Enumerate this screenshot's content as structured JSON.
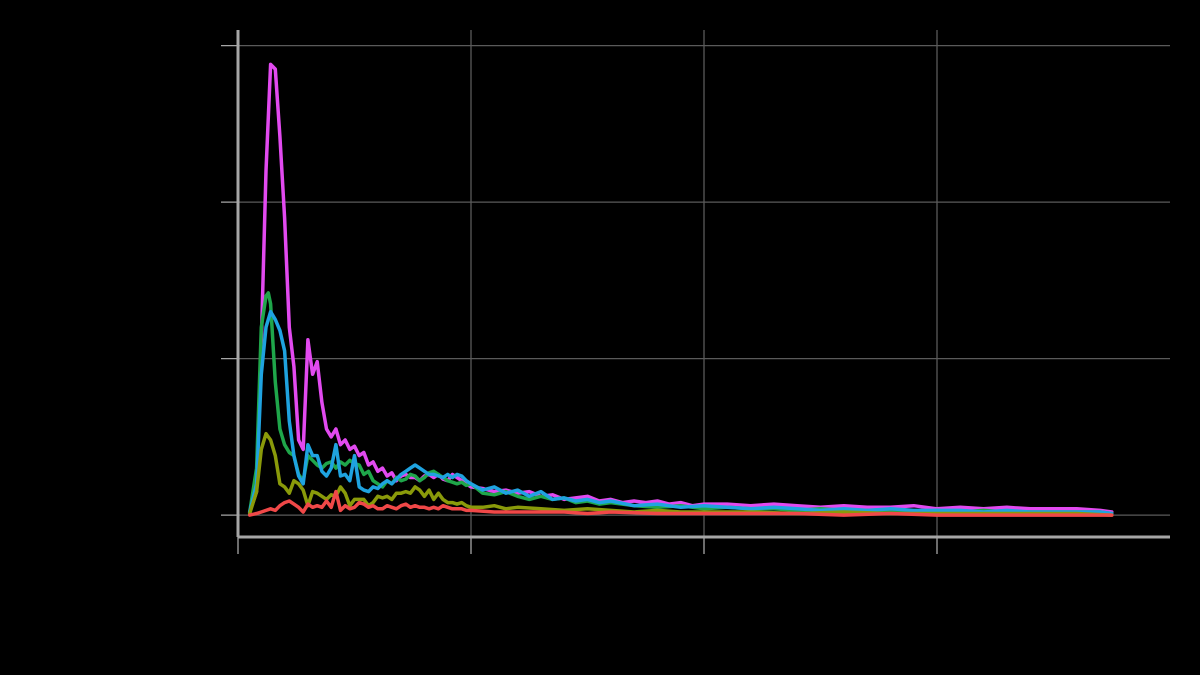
{
  "chart_data": {
    "type": "line",
    "title": "",
    "xlabel": "",
    "ylabel": "",
    "xlim": [
      0,
      4.0
    ],
    "ylim": [
      -0.14,
      3.1
    ],
    "x_ticks": [
      0,
      1,
      2,
      3
    ],
    "y_ticks": [
      0,
      1,
      2,
      3
    ],
    "x_tick_labels": [
      "",
      "",
      "",
      ""
    ],
    "y_tick_labels": [
      "",
      "",
      "",
      ""
    ],
    "grid": true,
    "legend": "none",
    "colors": {
      "background": "#000000",
      "grid": "#5a5a5a",
      "axis": "#a6a6a6"
    },
    "series": [
      {
        "color": "#e24af0",
        "x": [
          0.05,
          0.08,
          0.1,
          0.12,
          0.14,
          0.16,
          0.18,
          0.2,
          0.22,
          0.24,
          0.26,
          0.28,
          0.3,
          0.32,
          0.34,
          0.36,
          0.38,
          0.4,
          0.42,
          0.44,
          0.46,
          0.48,
          0.5,
          0.52,
          0.54,
          0.56,
          0.58,
          0.6,
          0.62,
          0.64,
          0.66,
          0.68,
          0.7,
          0.72,
          0.74,
          0.76,
          0.78,
          0.8,
          0.82,
          0.84,
          0.86,
          0.88,
          0.9,
          0.92,
          0.94,
          0.96,
          0.98,
          1.0,
          1.05,
          1.1,
          1.15,
          1.2,
          1.25,
          1.3,
          1.35,
          1.4,
          1.45,
          1.5,
          1.55,
          1.6,
          1.65,
          1.7,
          1.75,
          1.8,
          1.85,
          1.9,
          1.95,
          2.0,
          2.1,
          2.2,
          2.3,
          2.4,
          2.5,
          2.6,
          2.7,
          2.8,
          2.9,
          3.0,
          3.1,
          3.2,
          3.3,
          3.4,
          3.5,
          3.6,
          3.7,
          3.75
        ],
        "y": [
          0.02,
          0.15,
          1.1,
          2.2,
          2.88,
          2.85,
          2.42,
          1.9,
          1.2,
          0.95,
          0.48,
          0.42,
          1.12,
          0.9,
          0.98,
          0.72,
          0.55,
          0.5,
          0.55,
          0.45,
          0.48,
          0.42,
          0.44,
          0.38,
          0.4,
          0.32,
          0.34,
          0.28,
          0.3,
          0.25,
          0.27,
          0.22,
          0.25,
          0.26,
          0.24,
          0.24,
          0.22,
          0.25,
          0.26,
          0.24,
          0.26,
          0.23,
          0.22,
          0.26,
          0.24,
          0.22,
          0.2,
          0.18,
          0.17,
          0.15,
          0.16,
          0.14,
          0.15,
          0.12,
          0.13,
          0.1,
          0.11,
          0.12,
          0.09,
          0.1,
          0.08,
          0.09,
          0.08,
          0.09,
          0.07,
          0.08,
          0.06,
          0.07,
          0.07,
          0.06,
          0.07,
          0.06,
          0.05,
          0.06,
          0.05,
          0.05,
          0.06,
          0.04,
          0.05,
          0.04,
          0.05,
          0.04,
          0.04,
          0.04,
          0.03,
          0.02
        ]
      },
      {
        "color": "#1fa64a",
        "x": [
          0.05,
          0.08,
          0.1,
          0.12,
          0.13,
          0.14,
          0.16,
          0.18,
          0.2,
          0.22,
          0.24,
          0.26,
          0.28,
          0.3,
          0.32,
          0.34,
          0.36,
          0.38,
          0.4,
          0.42,
          0.44,
          0.46,
          0.48,
          0.5,
          0.52,
          0.54,
          0.56,
          0.58,
          0.6,
          0.62,
          0.64,
          0.66,
          0.68,
          0.7,
          0.72,
          0.74,
          0.76,
          0.78,
          0.8,
          0.82,
          0.84,
          0.86,
          0.88,
          0.9,
          0.92,
          0.94,
          0.96,
          0.98,
          1.0,
          1.05,
          1.1,
          1.15,
          1.2,
          1.25,
          1.3,
          1.35,
          1.4,
          1.45,
          1.5,
          1.55,
          1.6,
          1.7,
          1.8,
          1.9,
          2.0,
          2.1,
          2.2,
          2.3,
          2.4,
          2.5,
          2.6,
          2.7,
          2.8,
          2.9,
          3.0,
          3.1,
          3.2,
          3.3,
          3.4,
          3.5,
          3.6,
          3.7,
          3.75
        ],
        "y": [
          0.02,
          0.3,
          1.2,
          1.4,
          1.42,
          1.35,
          0.85,
          0.55,
          0.45,
          0.4,
          0.38,
          0.26,
          0.22,
          0.38,
          0.35,
          0.32,
          0.3,
          0.33,
          0.34,
          0.3,
          0.34,
          0.32,
          0.35,
          0.33,
          0.32,
          0.26,
          0.28,
          0.22,
          0.2,
          0.18,
          0.22,
          0.2,
          0.24,
          0.22,
          0.23,
          0.26,
          0.25,
          0.22,
          0.24,
          0.27,
          0.28,
          0.26,
          0.24,
          0.22,
          0.21,
          0.2,
          0.21,
          0.19,
          0.2,
          0.14,
          0.13,
          0.15,
          0.12,
          0.1,
          0.12,
          0.1,
          0.11,
          0.08,
          0.09,
          0.07,
          0.08,
          0.06,
          0.05,
          0.06,
          0.04,
          0.05,
          0.04,
          0.04,
          0.03,
          0.04,
          0.03,
          0.03,
          0.03,
          0.02,
          0.03,
          0.02,
          0.03,
          0.02,
          0.02,
          0.02,
          0.02,
          0.02,
          0.01
        ]
      },
      {
        "color": "#1fa3e0",
        "x": [
          0.05,
          0.08,
          0.1,
          0.12,
          0.14,
          0.16,
          0.18,
          0.2,
          0.22,
          0.24,
          0.26,
          0.28,
          0.3,
          0.32,
          0.34,
          0.36,
          0.38,
          0.4,
          0.42,
          0.44,
          0.46,
          0.48,
          0.5,
          0.52,
          0.54,
          0.56,
          0.58,
          0.6,
          0.62,
          0.64,
          0.66,
          0.68,
          0.7,
          0.72,
          0.74,
          0.76,
          0.78,
          0.8,
          0.82,
          0.84,
          0.86,
          0.88,
          0.9,
          0.92,
          0.94,
          0.96,
          0.98,
          1.0,
          1.05,
          1.1,
          1.15,
          1.2,
          1.25,
          1.3,
          1.35,
          1.4,
          1.45,
          1.5,
          1.55,
          1.6,
          1.7,
          1.8,
          1.9,
          2.0,
          2.1,
          2.2,
          2.3,
          2.4,
          2.5,
          2.6,
          2.7,
          2.8,
          2.9,
          3.0,
          3.1,
          3.2,
          3.3,
          3.4,
          3.5,
          3.6,
          3.7,
          3.75
        ],
        "y": [
          0.02,
          0.2,
          0.9,
          1.2,
          1.3,
          1.25,
          1.18,
          1.05,
          0.6,
          0.38,
          0.25,
          0.2,
          0.45,
          0.38,
          0.38,
          0.28,
          0.25,
          0.3,
          0.45,
          0.25,
          0.26,
          0.22,
          0.38,
          0.18,
          0.16,
          0.15,
          0.18,
          0.17,
          0.2,
          0.22,
          0.2,
          0.23,
          0.26,
          0.28,
          0.3,
          0.32,
          0.3,
          0.28,
          0.26,
          0.26,
          0.25,
          0.24,
          0.26,
          0.24,
          0.26,
          0.25,
          0.22,
          0.2,
          0.16,
          0.18,
          0.14,
          0.16,
          0.12,
          0.15,
          0.1,
          0.11,
          0.09,
          0.1,
          0.08,
          0.09,
          0.06,
          0.07,
          0.05,
          0.06,
          0.05,
          0.04,
          0.05,
          0.04,
          0.03,
          0.04,
          0.03,
          0.04,
          0.03,
          0.03,
          0.03,
          0.02,
          0.03,
          0.02,
          0.02,
          0.02,
          0.02,
          0.01
        ]
      },
      {
        "color": "#8a9a0a",
        "x": [
          0.05,
          0.08,
          0.1,
          0.12,
          0.14,
          0.16,
          0.18,
          0.2,
          0.22,
          0.24,
          0.26,
          0.28,
          0.3,
          0.32,
          0.34,
          0.36,
          0.38,
          0.4,
          0.42,
          0.44,
          0.46,
          0.48,
          0.5,
          0.52,
          0.54,
          0.56,
          0.58,
          0.6,
          0.62,
          0.64,
          0.66,
          0.68,
          0.7,
          0.72,
          0.74,
          0.76,
          0.78,
          0.8,
          0.82,
          0.84,
          0.86,
          0.88,
          0.9,
          0.92,
          0.94,
          0.96,
          0.98,
          1.0,
          1.05,
          1.1,
          1.15,
          1.2,
          1.3,
          1.4,
          1.5,
          1.6,
          1.7,
          1.8,
          1.9,
          2.0,
          2.2,
          2.4,
          2.6,
          2.8,
          3.0,
          3.2,
          3.4,
          3.6,
          3.75
        ],
        "y": [
          0.01,
          0.15,
          0.42,
          0.52,
          0.48,
          0.38,
          0.2,
          0.18,
          0.14,
          0.22,
          0.2,
          0.16,
          0.06,
          0.15,
          0.14,
          0.12,
          0.1,
          0.13,
          0.12,
          0.18,
          0.14,
          0.06,
          0.1,
          0.1,
          0.1,
          0.06,
          0.08,
          0.12,
          0.11,
          0.12,
          0.1,
          0.14,
          0.14,
          0.15,
          0.14,
          0.18,
          0.16,
          0.12,
          0.16,
          0.1,
          0.14,
          0.1,
          0.08,
          0.08,
          0.07,
          0.08,
          0.06,
          0.05,
          0.05,
          0.06,
          0.04,
          0.05,
          0.04,
          0.03,
          0.04,
          0.03,
          0.02,
          0.03,
          0.02,
          0.02,
          0.02,
          0.01,
          0.02,
          0.01,
          0.01,
          0.01,
          0.01,
          0.01,
          0.0
        ]
      },
      {
        "color": "#f04848",
        "x": [
          0.05,
          0.08,
          0.1,
          0.12,
          0.14,
          0.16,
          0.18,
          0.2,
          0.22,
          0.24,
          0.26,
          0.28,
          0.3,
          0.32,
          0.34,
          0.36,
          0.38,
          0.4,
          0.42,
          0.44,
          0.46,
          0.48,
          0.5,
          0.52,
          0.54,
          0.56,
          0.58,
          0.6,
          0.62,
          0.64,
          0.66,
          0.68,
          0.7,
          0.72,
          0.74,
          0.76,
          0.78,
          0.8,
          0.82,
          0.84,
          0.86,
          0.88,
          0.9,
          0.92,
          0.94,
          0.96,
          0.98,
          1.0,
          1.1,
          1.2,
          1.3,
          1.4,
          1.5,
          1.6,
          1.8,
          2.0,
          2.2,
          2.4,
          2.6,
          2.8,
          3.0,
          3.2,
          3.4,
          3.6,
          3.75
        ],
        "y": [
          0.0,
          0.01,
          0.02,
          0.03,
          0.04,
          0.03,
          0.06,
          0.08,
          0.09,
          0.07,
          0.05,
          0.02,
          0.07,
          0.05,
          0.06,
          0.05,
          0.09,
          0.05,
          0.15,
          0.03,
          0.06,
          0.04,
          0.05,
          0.08,
          0.07,
          0.05,
          0.06,
          0.04,
          0.04,
          0.06,
          0.05,
          0.04,
          0.06,
          0.07,
          0.05,
          0.06,
          0.05,
          0.05,
          0.04,
          0.05,
          0.04,
          0.06,
          0.05,
          0.04,
          0.04,
          0.04,
          0.03,
          0.03,
          0.02,
          0.02,
          0.02,
          0.02,
          0.01,
          0.02,
          0.01,
          0.01,
          0.01,
          0.01,
          0.0,
          0.01,
          0.0,
          0.0,
          0.0,
          0.0,
          0.0
        ]
      }
    ]
  }
}
